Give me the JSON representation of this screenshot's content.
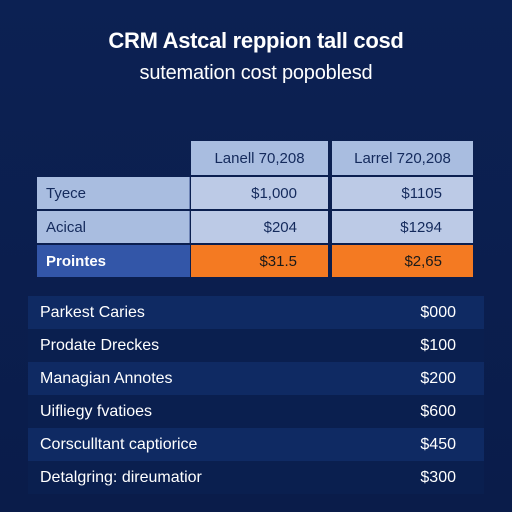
{
  "header": {
    "title": "CRM Astcal reppion tall cosd",
    "subtitle": "sutemation cost popoblesd"
  },
  "comparison_table": {
    "columns": [
      "Lanell 70,208",
      "Larrel 720,208"
    ],
    "rows": [
      {
        "label": "Tyece",
        "values": [
          "$1,000",
          "$1105"
        ],
        "highlight": false
      },
      {
        "label": "Acical",
        "values": [
          "$204",
          "$1294"
        ],
        "highlight": false
      },
      {
        "label": "Prointes",
        "values": [
          "$31.5",
          "$2,65"
        ],
        "highlight": true
      }
    ],
    "colors": {
      "header_bg": "#a9bde0",
      "cell_bg": "#bccae6",
      "highlight_label_bg": "#3356a8",
      "highlight_value_bg": "#f47a22"
    }
  },
  "cost_list": {
    "items": [
      {
        "label": "Parkest Caries",
        "value": "$000"
      },
      {
        "label": "Prodate Dreckes",
        "value": "$100"
      },
      {
        "label": "Managian Annotes",
        "value": "$200"
      },
      {
        "label": "Uifliegy fvatioes",
        "value": "$600"
      },
      {
        "label": "Corsculltant captiorice",
        "value": "$450"
      },
      {
        "label": "Detalgring: direumatior",
        "value": "$300"
      }
    ]
  },
  "colors": {
    "background": "#0b1f4e",
    "text": "#ffffff"
  }
}
